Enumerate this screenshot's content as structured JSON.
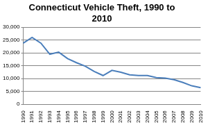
{
  "chart_data": {
    "type": "line",
    "title": "Connecticut Vehicle Theft, 1990 to 2010",
    "categories": [
      "1990",
      "1991",
      "1992",
      "1993",
      "1994",
      "1995",
      "1996",
      "1997",
      "1998",
      "1999",
      "2000",
      "2001",
      "2002",
      "2003",
      "2004",
      "2005",
      "2006",
      "2007",
      "2008",
      "2009",
      "2010"
    ],
    "values": [
      23800,
      26000,
      23800,
      19500,
      20300,
      17800,
      16200,
      14800,
      12800,
      11200,
      13200,
      12500,
      11500,
      11200,
      11200,
      10400,
      10200,
      9600,
      8500,
      7200,
      6500
    ],
    "color": "#4a7ebb",
    "marker": "none",
    "ylim": [
      0,
      30000
    ],
    "yticks": [
      0,
      {
        "value": 5000,
        "label": "5,000"
      },
      {
        "value": 10000,
        "label": "10,000"
      },
      {
        "value": 15000,
        "label": "15,000"
      },
      {
        "value": 20000,
        "label": "20,000"
      },
      {
        "value": 25000,
        "label": "25,000"
      },
      {
        "value": 30000,
        "label": "30,000"
      }
    ],
    "grid": true
  }
}
